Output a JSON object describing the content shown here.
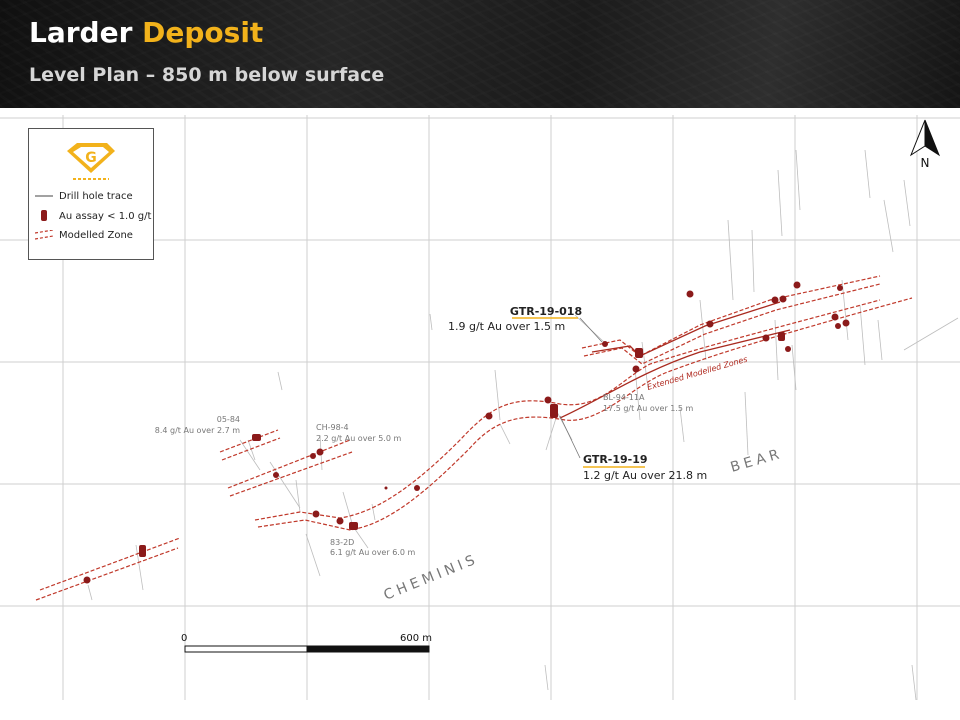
{
  "header": {
    "title_part1": "Larder",
    "title_part2": "Deposit",
    "subtitle": "Level Plan – 850 m below surface"
  },
  "legend": {
    "logo": "G",
    "items": [
      {
        "symbol": "drill-hole-trace",
        "label": "Drill hole trace"
      },
      {
        "symbol": "au-assay",
        "label": "Au assay < 1.0 g/t"
      },
      {
        "symbol": "modelled-zone",
        "label": "Modelled Zone"
      }
    ]
  },
  "north_arrow": {
    "label": "N"
  },
  "callouts": {
    "gtr_19_018": {
      "hole": "GTR-19-018",
      "assay": "1.9 g/t Au over 1.5 m"
    },
    "gtr_19_19": {
      "hole": "GTR-19-19",
      "assay": "1.2 g/t Au over 21.8 m"
    },
    "bl_94_11a": {
      "hole": "BL-94-11A",
      "assay": "17.5 g/t Au over 1.5 m"
    },
    "h_05_84": {
      "hole": "05-84",
      "assay": "8.4 g/t Au over 2.7 m"
    },
    "ch_98_4": {
      "hole": "CH-98-4",
      "assay": "2.2 g/t Au over 5.0 m"
    },
    "h_83_2d": {
      "hole": "83-2D",
      "assay": "6.1 g/t Au over 6.0 m"
    }
  },
  "zone_labels": {
    "extended": "Extended Modelled Zones",
    "cheminis": "CHEMINIS",
    "bear": "BEAR"
  },
  "scale_bar": {
    "start": "0",
    "end": "600 m"
  },
  "colors": {
    "accent": "#f2b21b",
    "zone": "#c0392b",
    "assay": "#8b1a1a",
    "grid": "#cccccc"
  }
}
